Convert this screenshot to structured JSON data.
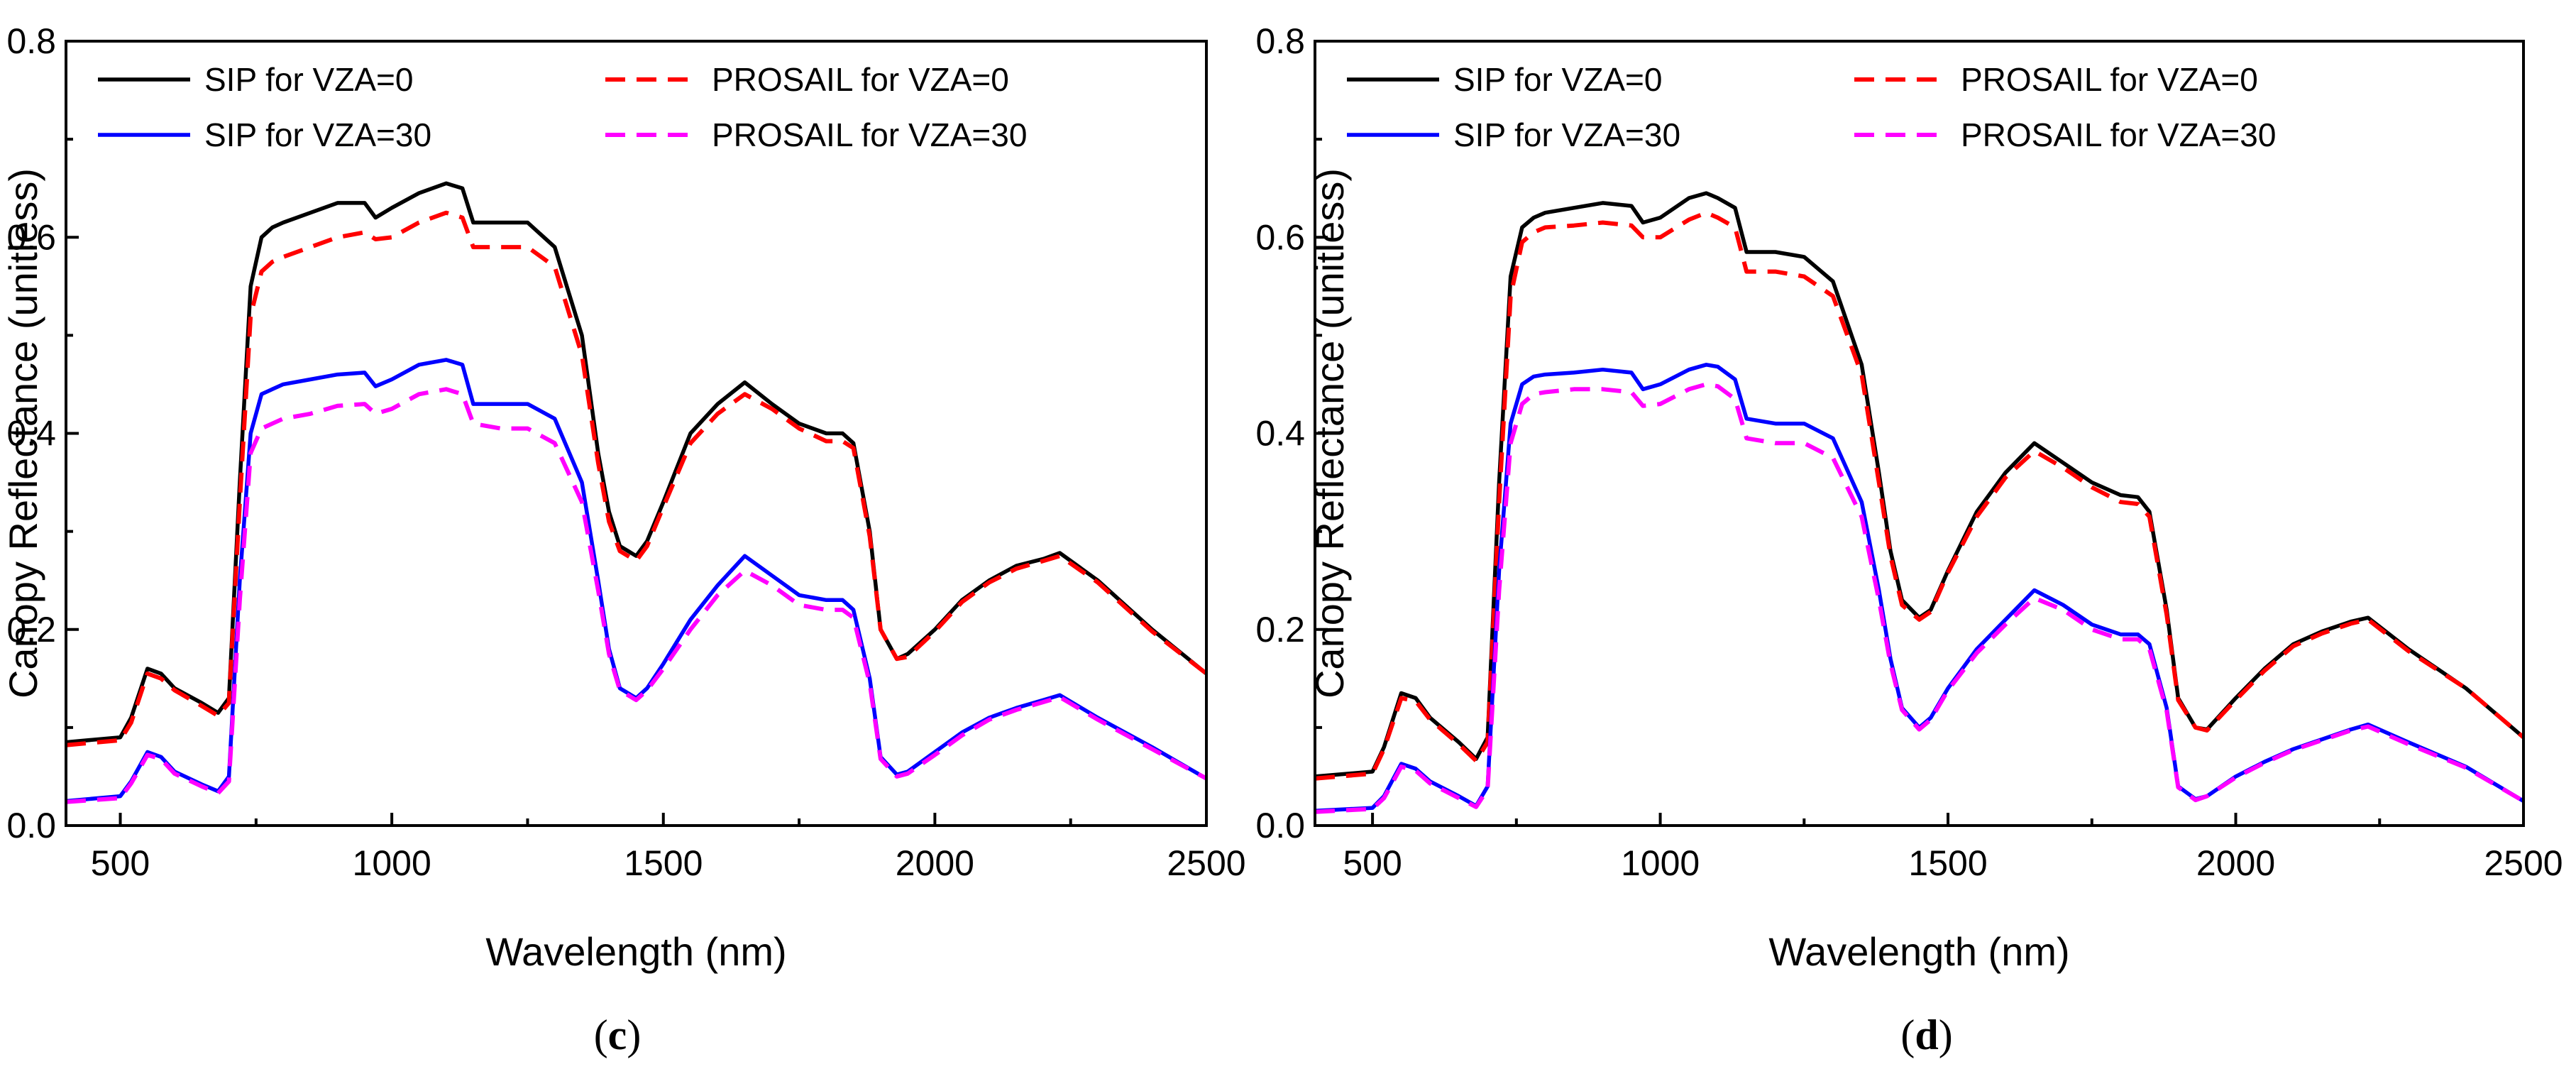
{
  "chart_data": [
    {
      "type": "line",
      "panel_label": {
        "open": "(",
        "letter": "c",
        "close": ")"
      },
      "xlabel": "Wavelength (nm)",
      "ylabel": "Canopy Reflectance (unitless)",
      "xlim": [
        400,
        2500
      ],
      "ylim": [
        0,
        0.8
      ],
      "xticks": [
        500,
        1000,
        1500,
        2000,
        2500
      ],
      "yticks": [
        0.0,
        0.2,
        0.4,
        0.6,
        0.8
      ],
      "ytick_labels": [
        "0.0",
        "0.2",
        "0.4",
        "0.6",
        "0.8"
      ],
      "legend": "top-left",
      "series": [
        {
          "name": "SIP for VZA=0",
          "color": "#000000",
          "style": "solid",
          "x": [
            400,
            500,
            520,
            550,
            575,
            600,
            650,
            680,
            700,
            720,
            740,
            760,
            780,
            800,
            850,
            900,
            950,
            970,
            1000,
            1050,
            1100,
            1130,
            1150,
            1200,
            1250,
            1300,
            1350,
            1380,
            1400,
            1420,
            1450,
            1470,
            1500,
            1550,
            1600,
            1650,
            1700,
            1750,
            1800,
            1830,
            1850,
            1880,
            1900,
            1930,
            1950,
            2000,
            2050,
            2100,
            2150,
            2200,
            2230,
            2300,
            2400,
            2500
          ],
          "y": [
            0.085,
            0.09,
            0.11,
            0.16,
            0.155,
            0.14,
            0.125,
            0.115,
            0.13,
            0.35,
            0.55,
            0.6,
            0.61,
            0.615,
            0.625,
            0.635,
            0.635,
            0.62,
            0.63,
            0.645,
            0.655,
            0.65,
            0.615,
            0.615,
            0.615,
            0.59,
            0.5,
            0.38,
            0.32,
            0.285,
            0.275,
            0.29,
            0.33,
            0.4,
            0.43,
            0.452,
            0.43,
            0.41,
            0.4,
            0.4,
            0.39,
            0.3,
            0.2,
            0.17,
            0.175,
            0.2,
            0.23,
            0.25,
            0.265,
            0.272,
            0.278,
            0.25,
            0.2,
            0.155
          ]
        },
        {
          "name": "PROSAIL for VZA=0",
          "color": "#ff0000",
          "style": "dashed",
          "x": [
            400,
            500,
            520,
            550,
            575,
            600,
            650,
            680,
            700,
            720,
            740,
            760,
            780,
            800,
            850,
            900,
            950,
            970,
            1000,
            1050,
            1100,
            1130,
            1150,
            1200,
            1250,
            1300,
            1350,
            1380,
            1400,
            1420,
            1450,
            1470,
            1500,
            1550,
            1600,
            1650,
            1700,
            1750,
            1800,
            1830,
            1850,
            1880,
            1900,
            1930,
            1950,
            2000,
            2050,
            2100,
            2150,
            2200,
            2230,
            2300,
            2400,
            2500
          ],
          "y": [
            0.082,
            0.087,
            0.105,
            0.155,
            0.15,
            0.138,
            0.122,
            0.112,
            0.125,
            0.33,
            0.52,
            0.565,
            0.575,
            0.58,
            0.59,
            0.6,
            0.605,
            0.598,
            0.6,
            0.615,
            0.625,
            0.62,
            0.59,
            0.59,
            0.59,
            0.57,
            0.48,
            0.37,
            0.31,
            0.28,
            0.27,
            0.285,
            0.325,
            0.39,
            0.42,
            0.44,
            0.425,
            0.405,
            0.392,
            0.392,
            0.385,
            0.295,
            0.2,
            0.17,
            0.172,
            0.198,
            0.228,
            0.248,
            0.262,
            0.27,
            0.275,
            0.248,
            0.198,
            0.155
          ]
        },
        {
          "name": "SIP for VZA=30",
          "color": "#0000ff",
          "style": "solid",
          "x": [
            400,
            500,
            520,
            550,
            575,
            600,
            650,
            680,
            700,
            720,
            740,
            760,
            780,
            800,
            850,
            900,
            950,
            970,
            1000,
            1050,
            1100,
            1130,
            1150,
            1200,
            1250,
            1300,
            1350,
            1380,
            1400,
            1420,
            1450,
            1470,
            1500,
            1550,
            1600,
            1650,
            1700,
            1750,
            1800,
            1830,
            1850,
            1880,
            1900,
            1930,
            1950,
            2000,
            2050,
            2100,
            2150,
            2200,
            2230,
            2300,
            2400,
            2500
          ],
          "y": [
            0.025,
            0.03,
            0.045,
            0.075,
            0.07,
            0.055,
            0.042,
            0.035,
            0.05,
            0.25,
            0.4,
            0.44,
            0.445,
            0.45,
            0.455,
            0.46,
            0.462,
            0.448,
            0.455,
            0.47,
            0.475,
            0.47,
            0.43,
            0.43,
            0.43,
            0.415,
            0.35,
            0.25,
            0.18,
            0.14,
            0.13,
            0.14,
            0.165,
            0.21,
            0.245,
            0.275,
            0.255,
            0.235,
            0.23,
            0.23,
            0.22,
            0.15,
            0.07,
            0.052,
            0.055,
            0.075,
            0.095,
            0.11,
            0.12,
            0.128,
            0.133,
            0.11,
            0.08,
            0.048
          ]
        },
        {
          "name": "PROSAIL for VZA=30",
          "color": "#ff00ff",
          "style": "dashed",
          "x": [
            400,
            500,
            520,
            550,
            575,
            600,
            650,
            680,
            700,
            720,
            740,
            760,
            780,
            800,
            850,
            900,
            950,
            970,
            1000,
            1050,
            1100,
            1130,
            1150,
            1200,
            1250,
            1300,
            1350,
            1380,
            1400,
            1420,
            1450,
            1470,
            1500,
            1550,
            1600,
            1650,
            1700,
            1750,
            1800,
            1830,
            1850,
            1880,
            1900,
            1930,
            1950,
            2000,
            2050,
            2100,
            2150,
            2200,
            2230,
            2300,
            2400,
            2500
          ],
          "y": [
            0.024,
            0.028,
            0.043,
            0.072,
            0.068,
            0.053,
            0.04,
            0.033,
            0.045,
            0.23,
            0.38,
            0.405,
            0.41,
            0.415,
            0.42,
            0.428,
            0.43,
            0.42,
            0.425,
            0.44,
            0.445,
            0.44,
            0.41,
            0.405,
            0.405,
            0.39,
            0.33,
            0.24,
            0.175,
            0.138,
            0.128,
            0.138,
            0.16,
            0.2,
            0.235,
            0.26,
            0.245,
            0.225,
            0.22,
            0.22,
            0.212,
            0.145,
            0.068,
            0.05,
            0.053,
            0.072,
            0.092,
            0.108,
            0.118,
            0.126,
            0.131,
            0.108,
            0.078,
            0.048
          ]
        }
      ]
    },
    {
      "type": "line",
      "panel_label": {
        "open": "(",
        "letter": "d",
        "close": ")"
      },
      "xlabel": "Wavelength (nm)",
      "ylabel": "Canopy Reflectance (unitless)",
      "xlim": [
        400,
        2500
      ],
      "ylim": [
        0,
        0.8
      ],
      "xticks": [
        500,
        1000,
        1500,
        2000,
        2500
      ],
      "yticks": [
        0.0,
        0.2,
        0.4,
        0.6,
        0.8
      ],
      "ytick_labels": [
        "0.0",
        "0.2",
        "0.4",
        "0.6",
        "0.8"
      ],
      "legend": "top-left",
      "series": [
        {
          "name": "SIP for VZA=0",
          "color": "#000000",
          "style": "solid",
          "x": [
            400,
            500,
            520,
            550,
            575,
            600,
            650,
            680,
            700,
            720,
            740,
            760,
            780,
            800,
            850,
            900,
            950,
            970,
            1000,
            1050,
            1080,
            1100,
            1130,
            1150,
            1200,
            1250,
            1300,
            1350,
            1380,
            1400,
            1420,
            1450,
            1470,
            1500,
            1550,
            1600,
            1650,
            1700,
            1750,
            1800,
            1830,
            1850,
            1880,
            1900,
            1930,
            1950,
            2000,
            2050,
            2100,
            2150,
            2200,
            2230,
            2300,
            2400,
            2500
          ],
          "y": [
            0.05,
            0.055,
            0.08,
            0.135,
            0.13,
            0.11,
            0.085,
            0.068,
            0.09,
            0.35,
            0.56,
            0.61,
            0.62,
            0.625,
            0.63,
            0.635,
            0.632,
            0.615,
            0.62,
            0.64,
            0.645,
            0.64,
            0.63,
            0.585,
            0.585,
            0.58,
            0.555,
            0.47,
            0.36,
            0.28,
            0.23,
            0.212,
            0.22,
            0.26,
            0.32,
            0.36,
            0.39,
            0.37,
            0.35,
            0.337,
            0.335,
            0.32,
            0.22,
            0.13,
            0.1,
            0.098,
            0.13,
            0.16,
            0.185,
            0.198,
            0.208,
            0.212,
            0.18,
            0.14,
            0.09
          ]
        },
        {
          "name": "PROSAIL for VZA=0",
          "color": "#ff0000",
          "style": "dashed",
          "x": [
            400,
            500,
            520,
            550,
            575,
            600,
            650,
            680,
            700,
            720,
            740,
            760,
            780,
            800,
            850,
            900,
            950,
            970,
            1000,
            1050,
            1080,
            1100,
            1130,
            1150,
            1200,
            1250,
            1300,
            1350,
            1380,
            1400,
            1420,
            1450,
            1470,
            1500,
            1550,
            1600,
            1650,
            1700,
            1750,
            1800,
            1830,
            1850,
            1880,
            1900,
            1930,
            1950,
            2000,
            2050,
            2100,
            2150,
            2200,
            2230,
            2300,
            2400,
            2500
          ],
          "y": [
            0.048,
            0.053,
            0.078,
            0.13,
            0.127,
            0.108,
            0.083,
            0.066,
            0.085,
            0.33,
            0.54,
            0.595,
            0.605,
            0.61,
            0.612,
            0.615,
            0.612,
            0.6,
            0.6,
            0.618,
            0.625,
            0.62,
            0.61,
            0.565,
            0.565,
            0.56,
            0.54,
            0.46,
            0.35,
            0.275,
            0.225,
            0.21,
            0.218,
            0.258,
            0.315,
            0.355,
            0.382,
            0.365,
            0.345,
            0.33,
            0.328,
            0.315,
            0.215,
            0.128,
            0.1,
            0.097,
            0.128,
            0.158,
            0.183,
            0.196,
            0.206,
            0.21,
            0.178,
            0.14,
            0.09
          ]
        },
        {
          "name": "SIP for VZA=30",
          "color": "#0000ff",
          "style": "solid",
          "x": [
            400,
            500,
            520,
            550,
            575,
            600,
            650,
            680,
            700,
            720,
            740,
            760,
            780,
            800,
            850,
            900,
            950,
            970,
            1000,
            1050,
            1080,
            1100,
            1130,
            1150,
            1200,
            1250,
            1300,
            1350,
            1380,
            1400,
            1420,
            1450,
            1470,
            1500,
            1550,
            1600,
            1650,
            1700,
            1750,
            1800,
            1830,
            1850,
            1880,
            1900,
            1930,
            1950,
            2000,
            2050,
            2100,
            2150,
            2200,
            2230,
            2300,
            2400,
            2500
          ],
          "y": [
            0.015,
            0.018,
            0.03,
            0.063,
            0.058,
            0.045,
            0.03,
            0.02,
            0.04,
            0.26,
            0.41,
            0.45,
            0.458,
            0.46,
            0.462,
            0.465,
            0.462,
            0.445,
            0.45,
            0.465,
            0.47,
            0.468,
            0.455,
            0.415,
            0.41,
            0.41,
            0.395,
            0.33,
            0.24,
            0.17,
            0.12,
            0.1,
            0.11,
            0.14,
            0.18,
            0.21,
            0.24,
            0.225,
            0.205,
            0.195,
            0.195,
            0.185,
            0.12,
            0.04,
            0.027,
            0.03,
            0.05,
            0.065,
            0.078,
            0.088,
            0.098,
            0.103,
            0.085,
            0.06,
            0.025
          ]
        },
        {
          "name": "PROSAIL for VZA=30",
          "color": "#ff00ff",
          "style": "dashed",
          "x": [
            400,
            500,
            520,
            550,
            575,
            600,
            650,
            680,
            700,
            720,
            740,
            760,
            780,
            800,
            850,
            900,
            950,
            970,
            1000,
            1050,
            1080,
            1100,
            1130,
            1150,
            1200,
            1250,
            1300,
            1350,
            1380,
            1400,
            1420,
            1450,
            1470,
            1500,
            1550,
            1600,
            1650,
            1700,
            1750,
            1800,
            1830,
            1850,
            1880,
            1900,
            1930,
            1950,
            2000,
            2050,
            2100,
            2150,
            2200,
            2230,
            2300,
            2400,
            2500
          ],
          "y": [
            0.014,
            0.017,
            0.028,
            0.06,
            0.056,
            0.043,
            0.028,
            0.019,
            0.037,
            0.24,
            0.39,
            0.43,
            0.44,
            0.442,
            0.445,
            0.445,
            0.442,
            0.428,
            0.43,
            0.445,
            0.45,
            0.448,
            0.435,
            0.395,
            0.39,
            0.39,
            0.375,
            0.315,
            0.23,
            0.165,
            0.118,
            0.098,
            0.108,
            0.138,
            0.176,
            0.205,
            0.232,
            0.22,
            0.2,
            0.19,
            0.19,
            0.18,
            0.117,
            0.039,
            0.026,
            0.03,
            0.049,
            0.064,
            0.077,
            0.087,
            0.097,
            0.101,
            0.083,
            0.059,
            0.025
          ]
        }
      ]
    }
  ]
}
